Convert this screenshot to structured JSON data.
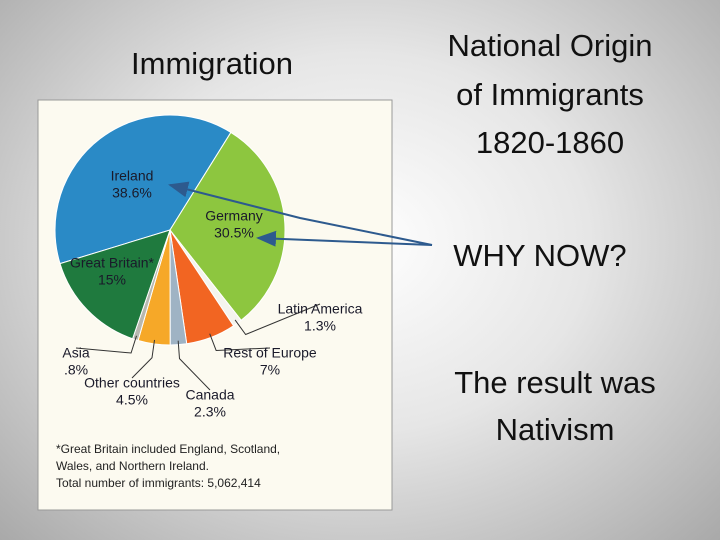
{
  "slide": {
    "heading": "Immigration",
    "title_lines": [
      "National Origin",
      "of Immigrants",
      "1820-1860"
    ],
    "question": "WHY NOW?",
    "conclusion_lines": [
      "The result was",
      "Nativism"
    ]
  },
  "chart_data": {
    "type": "pie",
    "categories": [
      "Ireland",
      "Germany",
      "Latin America",
      "Rest of Europe",
      "Canada",
      "Other countries",
      "Asia",
      "Great Britain*"
    ],
    "values": [
      38.6,
      30.5,
      1.3,
      7,
      2.3,
      4.5,
      0.8,
      15
    ],
    "value_labels": [
      "38.6%",
      "30.5%",
      "1.3%",
      "7%",
      "2.3%",
      "4.5%",
      ".8%",
      "15%"
    ],
    "colors": [
      "#2a8ac6",
      "#8dc63f",
      "#f4f4ee",
      "#f26522",
      "#9fb3c4",
      "#f6a828",
      "#b8b8b0",
      "#1f7a3e"
    ],
    "footnotes": [
      "*Great Britain included England, Scotland,",
      "Wales, and Northern Ireland.",
      "Total number of immigrants: 5,062,414"
    ]
  }
}
